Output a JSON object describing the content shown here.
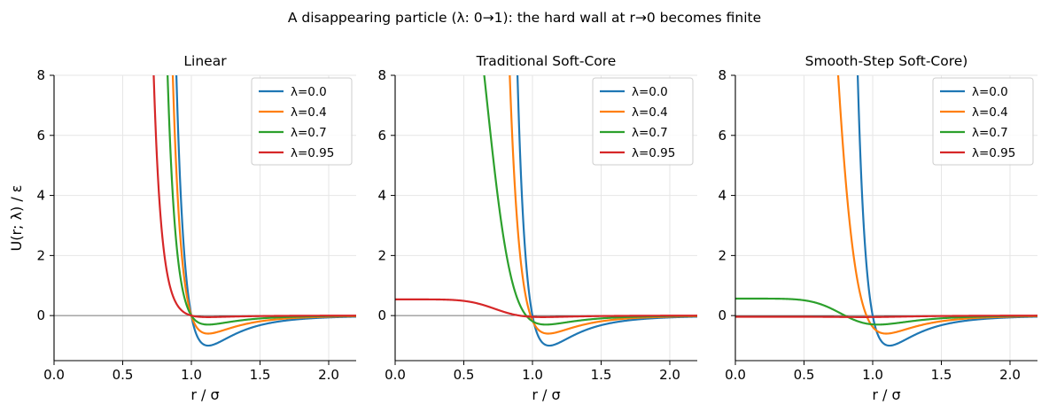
{
  "suptitle": "A disappearing particle (λ: 0→1): the hard wall at r→0 becomes finite",
  "ylabel": "U(r; λ) / ε",
  "xlabel": "r / σ",
  "colors": {
    "l0": "#1f77b4",
    "l04": "#ff7f0e",
    "l07": "#2ca02c",
    "l095": "#d62728"
  },
  "chart_data": [
    {
      "type": "line",
      "title": "Linear",
      "xlim": [
        0,
        2.2
      ],
      "ylim": [
        -1.5,
        8
      ],
      "xticks": [
        "0.0",
        "0.5",
        "1.0",
        "1.5",
        "2.0"
      ],
      "yticks": [
        "0",
        "2",
        "4",
        "6",
        "8"
      ],
      "legend": "top-right",
      "grid": true,
      "series": [
        {
          "name": "λ=0.0",
          "lambda": 0.0
        },
        {
          "name": "λ=0.4",
          "lambda": 0.4
        },
        {
          "name": "λ=0.7",
          "lambda": 0.7
        },
        {
          "name": "λ=0.95",
          "lambda": 0.95
        }
      ]
    },
    {
      "type": "line",
      "title": "Traditional Soft-Core",
      "xlim": [
        0,
        2.2
      ],
      "ylim": [
        -1.5,
        8
      ],
      "xticks": [
        "0.0",
        "0.5",
        "1.0",
        "1.5",
        "2.0"
      ],
      "yticks": [
        "0",
        "2",
        "4",
        "6",
        "8"
      ],
      "legend": "top-right",
      "grid": true,
      "series": [
        {
          "name": "λ=0.0",
          "lambda": 0.0
        },
        {
          "name": "λ=0.4",
          "lambda": 0.4
        },
        {
          "name": "λ=0.7",
          "lambda": 0.7
        },
        {
          "name": "λ=0.95",
          "lambda": 0.95
        }
      ]
    },
    {
      "type": "line",
      "title": "Smooth-Step Soft-Core)",
      "xlim": [
        0,
        2.2
      ],
      "ylim": [
        -1.5,
        8
      ],
      "xticks": [
        "0.0",
        "0.5",
        "1.0",
        "1.5",
        "2.0"
      ],
      "yticks": [
        "0",
        "2",
        "4",
        "6",
        "8"
      ],
      "legend": "top-right",
      "grid": true,
      "series": [
        {
          "name": "λ=0.0",
          "lambda": 0.0
        },
        {
          "name": "λ=0.4",
          "lambda": 0.4
        },
        {
          "name": "λ=0.7",
          "lambda": 0.7
        },
        {
          "name": "λ=0.95",
          "lambda": 0.95
        }
      ]
    }
  ]
}
